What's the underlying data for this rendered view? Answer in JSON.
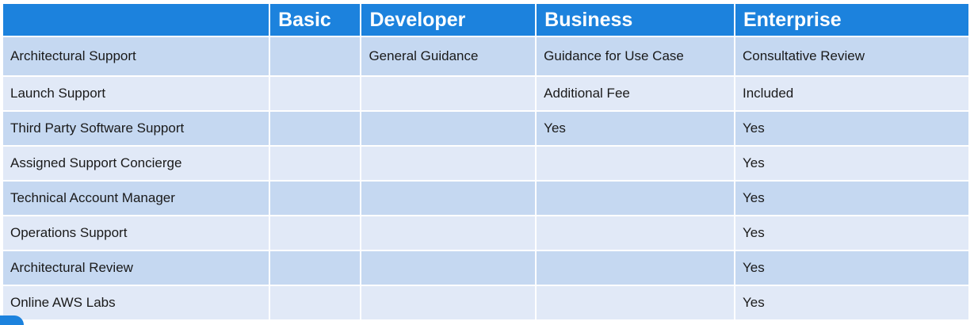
{
  "table": {
    "headers": [
      "",
      "Basic",
      "Developer",
      "Business",
      "Enterprise"
    ],
    "rows": [
      [
        "Architectural Support",
        "",
        "General Guidance",
        "Guidance for Use Case",
        "Consultative Review"
      ],
      [
        "Launch Support",
        "",
        "",
        "Additional Fee",
        "Included"
      ],
      [
        "Third Party Software Support",
        "",
        "",
        "Yes",
        "Yes"
      ],
      [
        "Assigned Support Concierge",
        "",
        "",
        "",
        "Yes"
      ],
      [
        "Technical Account Manager",
        "",
        "",
        "",
        "Yes"
      ],
      [
        "Operations Support",
        "",
        "",
        "",
        "Yes"
      ],
      [
        "Architectural Review",
        "",
        "",
        "",
        "Yes"
      ],
      [
        "Online AWS Labs",
        "",
        "",
        "",
        "Yes"
      ]
    ]
  },
  "colors": {
    "header_bg": "#1c82dd",
    "row_dark": "#c5d8f1",
    "row_light": "#e1e9f7",
    "text": "#1a1a1a"
  }
}
